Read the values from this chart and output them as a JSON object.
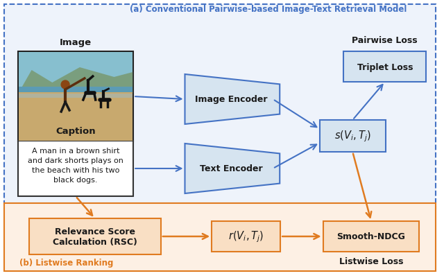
{
  "title_a": "(a) Conventional Pairwise-based Image-Text Retrieval Model",
  "label_b": "(b) Listwise Ranking",
  "label_image": "Image",
  "label_caption": "Caption",
  "caption_text": "A man in a brown shirt\nand dark shorts plays on\nthe beach with his two\nblack dogs.",
  "label_image_encoder": "Image Encoder",
  "label_text_encoder": "Text Encoder",
  "label_triplet": "Triplet Loss",
  "label_score": "$s(V_i,T_j)$",
  "label_pairwise": "Pairwise Loss",
  "label_rsc": "Relevance Score\nCalculation (RSC)",
  "label_r": "$r(V_i,T_j)$",
  "label_smooth": "Smooth-NDCG",
  "label_listwise": "Listwise Loss",
  "blue_color": "#4472C4",
  "orange_color": "#E07B20",
  "box_blue_fill": "#D6E4F0",
  "box_orange_fill": "#F9DFC4",
  "box_blue_border": "#4472C4",
  "box_orange_border": "#E07B20",
  "bg_blue": "#EEF3FB",
  "bg_orange": "#FDF0E4",
  "border_blue": "#4472C4",
  "border_orange": "#E07B20",
  "text_blue": "#4472C4",
  "text_black": "#1A1A1A",
  "encoder_fill": "#D6E4F0",
  "encoder_edge": "#4472C4"
}
